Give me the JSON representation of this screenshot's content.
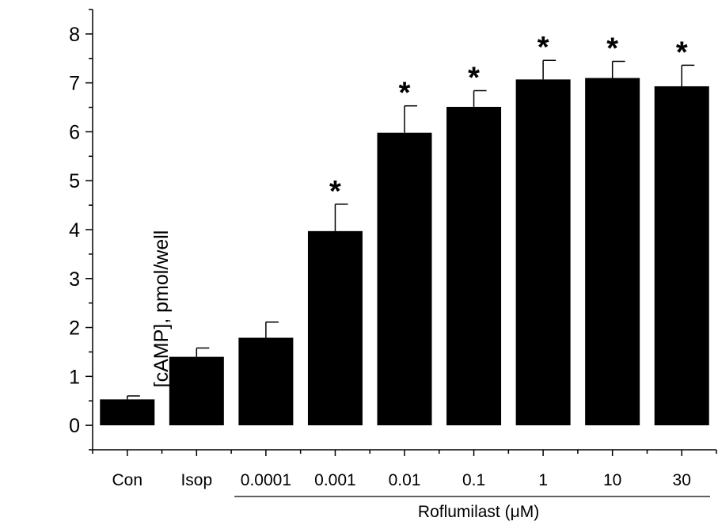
{
  "chart_data": {
    "type": "bar",
    "title": "",
    "xlabel": "",
    "ylabel": "[cAMP], pmol/well",
    "ylim": [
      -0.5,
      8.5
    ],
    "yticks": [
      0,
      1,
      2,
      3,
      4,
      5,
      6,
      7,
      8
    ],
    "grid": false,
    "categories": [
      "Con",
      "Isop",
      "0.0001",
      "0.001",
      "0.01",
      "0.1",
      "1",
      "10",
      "30"
    ],
    "values": [
      0.53,
      1.4,
      1.79,
      3.97,
      5.98,
      6.51,
      7.07,
      7.1,
      6.93
    ],
    "errors": [
      0.07,
      0.18,
      0.32,
      0.55,
      0.55,
      0.33,
      0.39,
      0.34,
      0.43
    ],
    "significance": [
      "",
      "",
      "",
      "*",
      "*",
      "*",
      "*",
      "*",
      "*"
    ],
    "bar_color": "#000000",
    "group_label": {
      "text": "Roflumilast (μM)",
      "from_category": 2,
      "to_category": 8
    }
  }
}
